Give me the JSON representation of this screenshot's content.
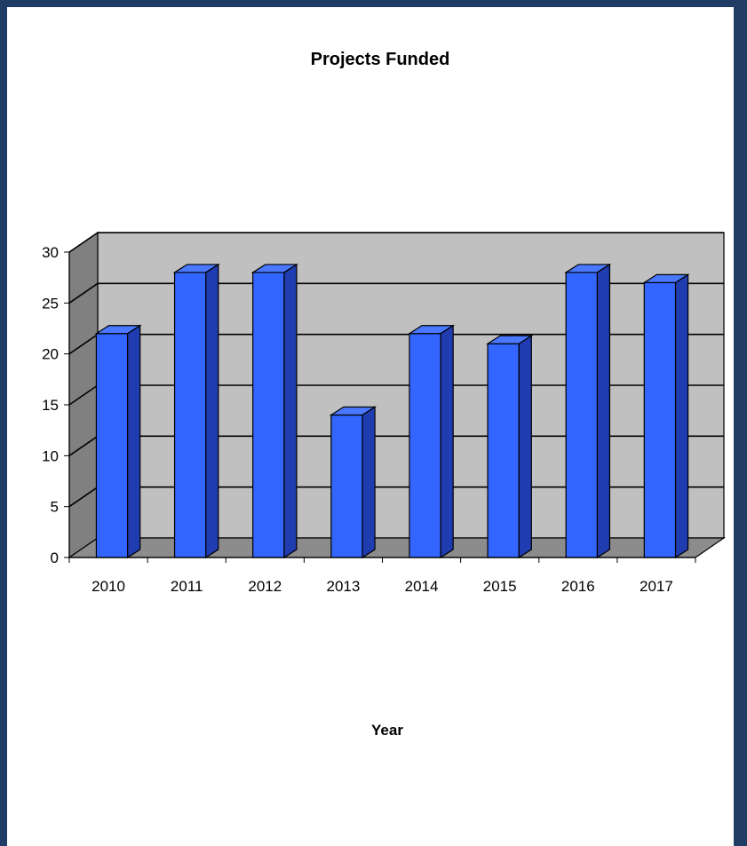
{
  "chart_data": {
    "type": "bar",
    "title": "Projects Funded",
    "xlabel": "Year",
    "ylabel": "",
    "categories": [
      "2010",
      "2011",
      "2012",
      "2013",
      "2014",
      "2015",
      "2016",
      "2017"
    ],
    "values": [
      22,
      28,
      28,
      14,
      22,
      21,
      28,
      27
    ],
    "ylim": [
      0,
      30
    ],
    "yticks": [
      0,
      5,
      10,
      15,
      20,
      25,
      30
    ],
    "grid": true,
    "style": "3d",
    "colors": {
      "bar_front": "#3366ff",
      "bar_top": "#4a78ff",
      "bar_side": "#1f3cb0",
      "back_wall": "#c0c0c0",
      "side_wall": "#808080",
      "floor": "#8c8c8c",
      "page_background": "#1f3c64"
    }
  }
}
